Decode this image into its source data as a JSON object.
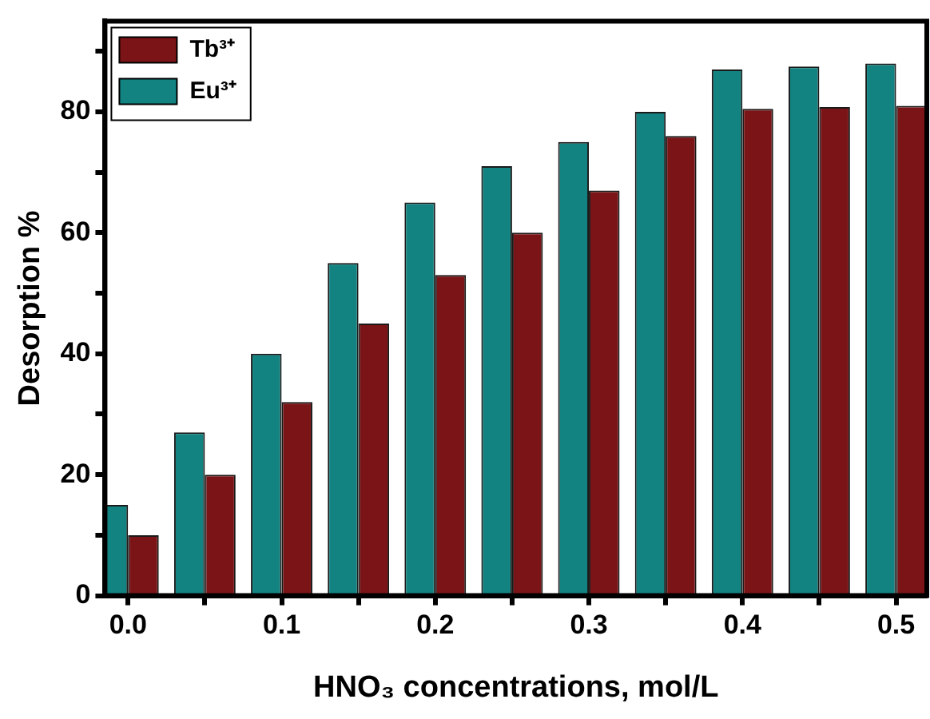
{
  "chart_data": {
    "type": "bar",
    "xlabel": "HNO₃ concentrations, mol/L",
    "ylabel": "Desorption %",
    "x": [
      0,
      0.05,
      0.1,
      0.15,
      0.2,
      0.25,
      0.3,
      0.35,
      0.4,
      0.45,
      0.5
    ],
    "series": [
      {
        "name": "Tb³⁺",
        "color": "#7b1416",
        "values": [
          10,
          20,
          32,
          45,
          53,
          60,
          67,
          76,
          80.5,
          80.8,
          81
        ]
      },
      {
        "name": "Eu³⁺",
        "color": "#138382",
        "values": [
          15,
          27,
          40,
          55,
          65,
          71,
          75,
          80,
          87,
          87.5,
          88
        ]
      }
    ],
    "xlim": [
      -0.015,
      0.52
    ],
    "xticks": [
      {
        "value": 0,
        "label": "0.0"
      },
      {
        "value": 0.05,
        "label": null
      },
      {
        "value": 0.1,
        "label": "0.1"
      },
      {
        "value": 0.15,
        "label": null
      },
      {
        "value": 0.2,
        "label": "0.2"
      },
      {
        "value": 0.25,
        "label": null
      },
      {
        "value": 0.3,
        "label": "0.3"
      },
      {
        "value": 0.35,
        "label": null
      },
      {
        "value": 0.4,
        "label": "0.4"
      },
      {
        "value": 0.45,
        "label": null
      },
      {
        "value": 0.5,
        "label": "0.5"
      }
    ],
    "ylim": [
      0,
      95
    ],
    "yticks": [
      0,
      {
        "value": 10,
        "label": null
      },
      20,
      {
        "value": 30,
        "label": null
      },
      40,
      {
        "value": 50,
        "label": null
      },
      60,
      {
        "value": 70,
        "label": null
      },
      80,
      {
        "value": 90,
        "label": null
      }
    ],
    "grid": false,
    "legend": "top left"
  }
}
